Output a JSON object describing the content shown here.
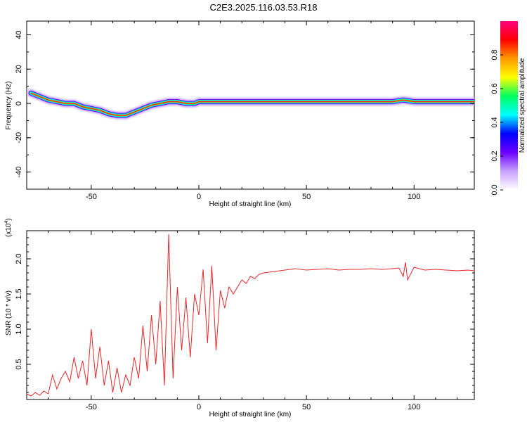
{
  "title": "C2E3.2025.116.03.53.R18",
  "chart_data": [
    {
      "type": "heatmap",
      "xlabel": "Height of straight line (km)",
      "ylabel": "Frequency (Hz)",
      "xlim": [
        -80,
        128
      ],
      "ylim": [
        -50,
        48
      ],
      "xticks": [
        -50,
        0,
        50,
        100
      ],
      "yticks": [
        -40,
        -20,
        0,
        20,
        40
      ],
      "colorbar": {
        "label": "Normalized spectral amplitude",
        "range": [
          0.0,
          1.0
        ],
        "ticks": [
          "0.0",
          "0.2",
          "0.4",
          "0.6",
          "0.8"
        ],
        "tick_values": [
          0.0,
          0.2,
          0.4,
          0.6,
          0.8
        ],
        "colors": [
          "#ffffff",
          "#c9a0ff",
          "#6a00ff",
          "#0000ff",
          "#00ffff",
          "#00ff60",
          "#ffff00",
          "#ff9900",
          "#ff0000",
          "#ff0080"
        ]
      },
      "ridge": {
        "x": [
          -78,
          -74,
          -70,
          -66,
          -62,
          -58,
          -54,
          -50,
          -46,
          -42,
          -38,
          -34,
          -30,
          -26,
          -22,
          -18,
          -14,
          -10,
          -6,
          -2,
          0,
          5,
          10,
          20,
          30,
          40,
          50,
          60,
          70,
          80,
          90,
          95,
          100,
          110,
          120,
          128
        ],
        "freq": [
          6,
          4,
          2,
          1,
          0,
          0,
          -2,
          -3,
          -4,
          -6,
          -7,
          -7,
          -5,
          -3,
          -1,
          0,
          1,
          1,
          0,
          0,
          1,
          1,
          1,
          1,
          1,
          1,
          1,
          1,
          1,
          1,
          1,
          2,
          1,
          1,
          1,
          1
        ]
      }
    },
    {
      "type": "line",
      "xlabel": "Height of straight line (km)",
      "ylabel": "SNR (10 * v/v)",
      "multiplier": "(x10",
      "multiplier_exp": "4",
      "multiplier_close": ")",
      "xlim": [
        -80,
        128
      ],
      "ylim": [
        0,
        2.4
      ],
      "xticks": [
        -50,
        0,
        50,
        100
      ],
      "yticks": [
        0.5,
        1.0,
        1.5,
        2.0
      ],
      "ytick_labels": [
        "0.5",
        "1.0",
        "1.5",
        "2.0"
      ],
      "series": [
        {
          "color": "#e8282a",
          "x": [
            -80,
            -78,
            -76,
            -74,
            -72,
            -70,
            -68,
            -66,
            -64,
            -62,
            -60,
            -58,
            -56,
            -54,
            -52,
            -50,
            -48,
            -46,
            -44,
            -42,
            -40,
            -38,
            -36,
            -34,
            -32,
            -30,
            -28,
            -26,
            -24,
            -22,
            -20,
            -18,
            -16,
            -14,
            -12,
            -10,
            -8,
            -6,
            -4,
            -2,
            0,
            2,
            4,
            6,
            8,
            10,
            12,
            14,
            16,
            18,
            20,
            22,
            24,
            26,
            28,
            30,
            35,
            40,
            45,
            50,
            55,
            60,
            65,
            70,
            75,
            80,
            85,
            90,
            93,
            95,
            96,
            97,
            100,
            105,
            110,
            115,
            120,
            125,
            128
          ],
          "y": [
            0.08,
            0.05,
            0.1,
            0.06,
            0.12,
            0.08,
            0.35,
            0.15,
            0.3,
            0.4,
            0.25,
            0.6,
            0.3,
            0.55,
            0.2,
            1.0,
            0.3,
            0.75,
            0.2,
            0.55,
            0.1,
            0.45,
            0.1,
            0.35,
            0.2,
            0.6,
            0.3,
            1.05,
            0.4,
            1.2,
            0.5,
            1.4,
            0.2,
            2.35,
            0.3,
            1.6,
            0.7,
            1.45,
            0.6,
            1.5,
            1.2,
            1.85,
            0.8,
            1.9,
            0.7,
            1.55,
            1.3,
            1.6,
            1.5,
            1.6,
            1.7,
            1.65,
            1.75,
            1.72,
            1.78,
            1.8,
            1.82,
            1.84,
            1.86,
            1.84,
            1.85,
            1.86,
            1.84,
            1.85,
            1.85,
            1.86,
            1.85,
            1.86,
            1.87,
            1.75,
            1.95,
            1.7,
            1.88,
            1.84,
            1.85,
            1.84,
            1.83,
            1.84,
            1.83
          ]
        }
      ]
    }
  ]
}
